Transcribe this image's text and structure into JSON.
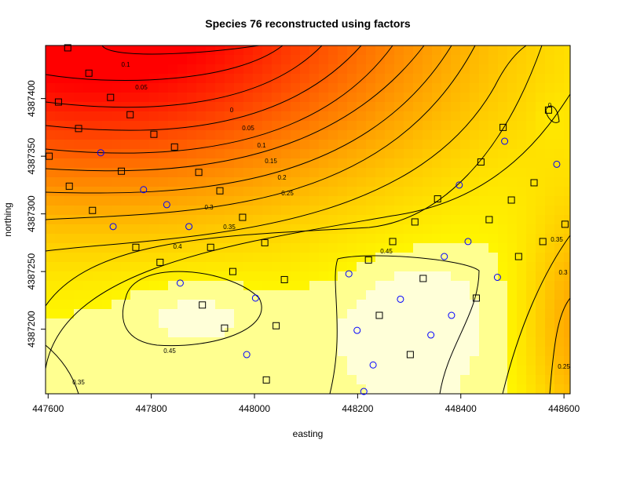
{
  "chart_data": {
    "type": "scatter",
    "title": "Species 76 reconstructed using factors",
    "x_label": "easting",
    "y_label": "northing",
    "xlim": [
      447595,
      448612
    ],
    "ylim": [
      4387144,
      4387446
    ],
    "xticks": [
      447600,
      447800,
      448000,
      448200,
      448400,
      448600
    ],
    "yticks": [
      4387200,
      4387250,
      4387300,
      4387350,
      4387400
    ],
    "contour_labels": [
      "0.1",
      "0.05",
      "0",
      "0.05",
      "0.1",
      "0.15",
      "0.2",
      "0.25",
      "0.3",
      "0.35",
      "0.4",
      "0.45",
      "0.45",
      "0.35",
      "0.35",
      "0.3",
      "0.25",
      "0"
    ],
    "series": [
      {
        "marker": "square",
        "color": "#000000",
        "x": [
          447638,
          447679,
          447620,
          447721,
          447659,
          447759,
          447602,
          447805,
          447845,
          447641,
          447742,
          447892,
          447933,
          447686,
          447977,
          447770,
          447817,
          447915,
          448020,
          447958,
          448058,
          447899,
          447942,
          448042,
          448023,
          448221,
          448268,
          448311,
          448355,
          448327,
          448242,
          448302,
          448455,
          448430,
          448498,
          448512,
          448542,
          448559,
          448439,
          448482,
          448570,
          448602
        ],
        "values": [
          4387444,
          4387422,
          4387397,
          4387401,
          4387374,
          4387386,
          4387350,
          4387369,
          4387358,
          4387324,
          4387337,
          4387336,
          4387320,
          4387303,
          4387297,
          4387271,
          4387258,
          4387271,
          4387275,
          4387250,
          4387243,
          4387221,
          4387201,
          4387203,
          4387156,
          4387260,
          4387276,
          4387293,
          4387313,
          4387244,
          4387212,
          4387178,
          4387295,
          4387227,
          4387312,
          4387263,
          4387327,
          4387276,
          4387345,
          4387375,
          4387390,
          4387291
        ]
      },
      {
        "marker": "circle",
        "color": "#0000ff",
        "x": [
          447702,
          447785,
          447830,
          447726,
          447873,
          447856,
          448002,
          447985,
          448183,
          448199,
          448212,
          448230,
          448283,
          448342,
          448368,
          448382,
          448414,
          448397,
          448471,
          448485,
          448586
        ],
        "values": [
          4387353,
          4387321,
          4387308,
          4387289,
          4387289,
          4387240,
          4387227,
          4387178,
          4387248,
          4387199,
          4387146,
          4387169,
          4387226,
          4387195,
          4387263,
          4387212,
          4387276,
          4387325,
          4387245,
          4387363,
          4387343
        ]
      }
    ]
  }
}
